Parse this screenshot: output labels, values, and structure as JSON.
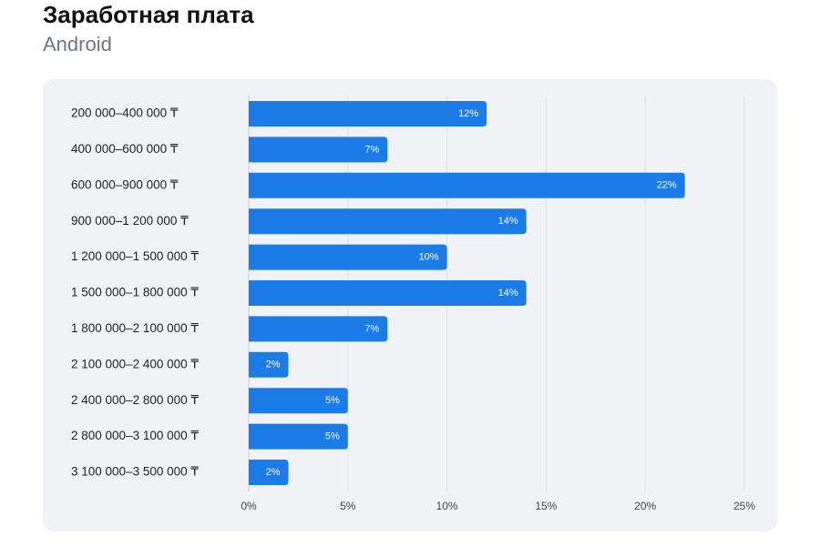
{
  "chart_data": {
    "type": "bar",
    "orientation": "horizontal",
    "title": "Заработная плата",
    "subtitle": "Android",
    "categories": [
      "200 000–400 000 ₸",
      "400 000–600 000 ₸",
      "600 000–900 000 ₸",
      "900 000–1 200 000 ₸",
      "1 200 000–1 500 000 ₸",
      "1 500 000–1 800 000 ₸",
      "1 800 000–2 100 000 ₸",
      "2 100 000–2 400 000 ₸",
      "2 400 000–2 800 000 ₸",
      "2 800 000–3 100 000 ₸",
      "3 100 000–3 500 000 ₸"
    ],
    "values": [
      12,
      7,
      22,
      14,
      10,
      14,
      7,
      2,
      5,
      5,
      2
    ],
    "value_labels": [
      "12%",
      "7%",
      "22%",
      "14%",
      "10%",
      "14%",
      "7%",
      "2%",
      "5%",
      "5%",
      "2%"
    ],
    "color": "#1b7ce8",
    "xlim": [
      0,
      25
    ],
    "xticks": [
      {
        "value": 0,
        "label": "0%"
      },
      {
        "value": 5,
        "label": "5%"
      },
      {
        "value": 10,
        "label": "10%"
      },
      {
        "value": 15,
        "label": "15%"
      },
      {
        "value": 20,
        "label": "20%"
      },
      {
        "value": 25,
        "label": "25%"
      }
    ],
    "grid": true
  }
}
